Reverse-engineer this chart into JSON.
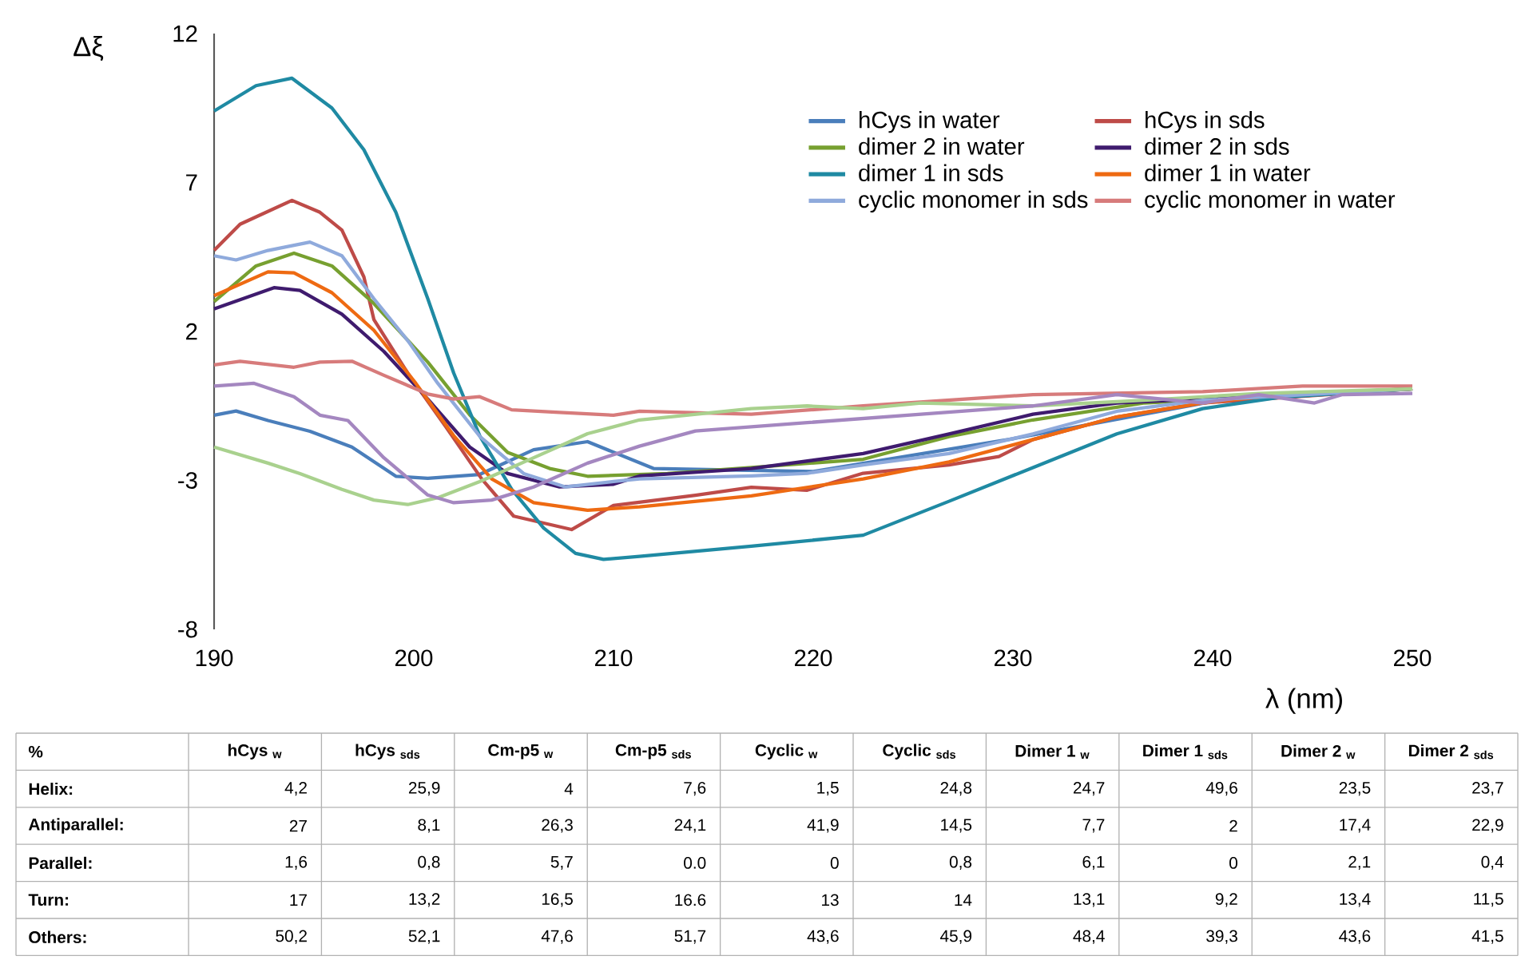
{
  "chart_data": [
    {
      "type": "line",
      "xlabel": "λ (nm)",
      "ylabel": "Δξ",
      "xlim": [
        190,
        250
      ],
      "ylim": [
        -8,
        12
      ],
      "xticks": [
        190,
        200,
        210,
        220,
        230,
        240,
        250
      ],
      "yticks": [
        -8,
        -3,
        2,
        7,
        12
      ],
      "legend": "top right",
      "line_style": "solid",
      "series": [
        {
          "name": "hCys in water",
          "color": "#4a7ebb",
          "x": [
            190,
            191.1,
            192.7,
            194.8,
            196.9,
            199.1,
            200.7,
            203.3,
            206,
            208.7,
            212,
            220,
            230,
            240,
            250
          ],
          "values": [
            -0.81,
            -0.67,
            -0.99,
            -1.35,
            -1.88,
            -2.86,
            -2.93,
            -2.8,
            -1.97,
            -1.7,
            -2.6,
            -2.7,
            -1.6,
            -0.35,
            0.07
          ]
        },
        {
          "name": "hCys in sds",
          "color": "#be4b48",
          "x": [
            190,
            191.3,
            193.9,
            195.3,
            196.4,
            197.5,
            198,
            199.7,
            201.6,
            203.4,
            205,
            207.9,
            210,
            214.1,
            216.9,
            219.7,
            222.5,
            226.8,
            229.3,
            231,
            235.2,
            239.5,
            250
          ],
          "values": [
            4.72,
            5.6,
            6.4,
            6.0,
            5.4,
            3.83,
            2.4,
            0.6,
            -1.2,
            -2.95,
            -4.2,
            -4.65,
            -3.84,
            -3.5,
            -3.23,
            -3.33,
            -2.76,
            -2.48,
            -2.2,
            -1.63,
            -0.87,
            -0.4,
            0.07
          ]
        },
        {
          "name": "dimer 2 in water",
          "color": "#77a030",
          "x": [
            190,
            192.1,
            194,
            195.9,
            198,
            200.7,
            202.8,
            204.7,
            206.8,
            208.7,
            212.7,
            216.9,
            222.5,
            226.8,
            231,
            236.6,
            250
          ],
          "values": [
            3.0,
            4.2,
            4.63,
            4.2,
            2.94,
            0.97,
            -0.8,
            -2.06,
            -2.6,
            -2.86,
            -2.77,
            -2.57,
            -2.29,
            -1.53,
            -0.97,
            -0.4,
            0.07
          ]
        },
        {
          "name": "dimer 2 in sds",
          "color": "#3f1b6e",
          "x": [
            190,
            193,
            194.3,
            196.4,
            198.5,
            200.7,
            202.8,
            204.7,
            207.3,
            210,
            211.3,
            216.9,
            222.5,
            226.8,
            231,
            235.2,
            238,
            250
          ],
          "values": [
            2.76,
            3.47,
            3.38,
            2.58,
            1.33,
            -0.27,
            -1.88,
            -2.77,
            -3.22,
            -3.13,
            -2.85,
            -2.6,
            -2.1,
            -1.44,
            -0.78,
            -0.4,
            -0.31,
            0.07
          ]
        },
        {
          "name": "dimer 1 in sds",
          "color": "#1f8aa3",
          "x": [
            190,
            192.1,
            193.9,
            195.9,
            197.5,
            199.1,
            200.7,
            202,
            203.3,
            204.9,
            206.5,
            208.1,
            209.5,
            211.3,
            216.9,
            222.5,
            226.8,
            231,
            235.2,
            239.5,
            243.4,
            250
          ],
          "values": [
            9.4,
            10.25,
            10.5,
            9.5,
            8.1,
            6.0,
            3.1,
            0.6,
            -1.5,
            -3.3,
            -4.6,
            -5.45,
            -5.65,
            -5.55,
            -5.21,
            -4.84,
            -3.7,
            -2.57,
            -1.44,
            -0.59,
            -0.21,
            0.07
          ]
        },
        {
          "name": "dimer 1 in water",
          "color": "#ee6a12",
          "x": [
            190,
            192.7,
            194,
            195.9,
            198,
            200.1,
            202,
            203.9,
            206,
            208.7,
            211.3,
            216.9,
            222.5,
            226.8,
            231,
            235.2,
            239.5,
            243.4,
            250
          ],
          "values": [
            3.2,
            4.0,
            3.97,
            3.3,
            2.04,
            0.26,
            -1.5,
            -2.95,
            -3.75,
            -4.0,
            -3.89,
            -3.52,
            -2.95,
            -2.38,
            -1.63,
            -0.87,
            -0.4,
            -0.12,
            0.07
          ]
        },
        {
          "name": "cyclic monomer in sds",
          "color": "#8faadc",
          "x": [
            190,
            191.1,
            192.7,
            194.8,
            196.4,
            198,
            199.7,
            201.2,
            203.3,
            205.5,
            207.6,
            210,
            211.3,
            216.9,
            219.7,
            222.5,
            226.8,
            231,
            235.2,
            239.5,
            250
          ],
          "values": [
            4.54,
            4.4,
            4.72,
            5.0,
            4.54,
            3.1,
            1.69,
            0.26,
            -1.52,
            -2.77,
            -3.22,
            -3.04,
            -2.95,
            -2.85,
            -2.76,
            -2.48,
            -2.1,
            -1.44,
            -0.68,
            -0.31,
            0.07
          ]
        },
        {
          "name": "cyclic monomer in water",
          "color": "#d77b7b",
          "x": [
            190,
            191.3,
            194,
            195.3,
            196.9,
            198.5,
            200.7,
            202,
            203.3,
            204.9,
            207.3,
            210,
            211.3,
            216.9,
            222.5,
            231,
            239.5,
            244.5,
            250
          ],
          "values": [
            0.88,
            1.0,
            0.8,
            0.97,
            1.0,
            0.53,
            -0.1,
            -0.27,
            -0.19,
            -0.63,
            -0.72,
            -0.81,
            -0.68,
            -0.78,
            -0.5,
            -0.12,
            -0.02,
            0.17,
            0.17
          ]
        },
        {
          "color": "#a9d18e",
          "x": [
            190,
            192.7,
            194.3,
            196.4,
            198,
            199.7,
            201.2,
            203.3,
            206,
            208.7,
            211.3,
            216.9,
            219.7,
            222.5,
            225.4,
            231,
            236.6,
            242.3,
            250
          ],
          "values": [
            -1.88,
            -2.42,
            -2.77,
            -3.3,
            -3.66,
            -3.81,
            -3.58,
            -3.04,
            -2.24,
            -1.43,
            -0.97,
            -0.59,
            -0.5,
            -0.59,
            -0.4,
            -0.5,
            -0.31,
            -0.08,
            0.07
          ]
        },
        {
          "color": "#a487c0",
          "x": [
            190,
            192,
            194,
            195.3,
            196.7,
            198.5,
            200.7,
            202,
            203.9,
            206,
            208.7,
            211.3,
            214.1,
            219.7,
            225.4,
            231,
            235.2,
            239.5,
            242.3,
            245.1,
            246.5,
            250
          ],
          "values": [
            0.17,
            0.26,
            -0.19,
            -0.81,
            -0.99,
            -2.24,
            -3.49,
            -3.75,
            -3.66,
            -3.22,
            -2.42,
            -1.85,
            -1.34,
            -1.06,
            -0.78,
            -0.5,
            -0.12,
            -0.4,
            -0.12,
            -0.4,
            -0.12,
            -0.08
          ]
        }
      ]
    },
    {
      "type": "other",
      "ylabel": "%",
      "categories": [
        "hCys $_{w}$",
        "hCys $_{sds}$",
        "Cm-p5 $_{w}$",
        "Cm-p5 $_{sds}$",
        "Cyclic $_{w}$",
        "Cyclic $_{sds}$",
        "Dimer 1 $_{w}$",
        "Dimer 1 $_{sds}$",
        "Dimer 2 $_{w}$",
        "Dimer 2 $_{sds}$"
      ],
      "y_categories": [
        "Helix:",
        "Antiparallel:",
        "Parallel:",
        "Turn:",
        "Others:"
      ],
      "cell_labels": [
        [
          "4,2",
          "25,9",
          "4",
          "7,6",
          "1,5",
          "24,8",
          "24,7",
          "49,6",
          "23,5",
          "23,7"
        ],
        [
          "27",
          "8,1",
          "26,3",
          "24,1",
          "41,9",
          "14,5",
          "7,7",
          "2",
          "17,4",
          "22,9"
        ],
        [
          "1,6",
          "0,8",
          "5,7",
          "0.0",
          "0",
          "0,8",
          "6,1",
          "0",
          "2,1",
          "0,4"
        ],
        [
          "17",
          "13,2",
          "16,5",
          "16.6",
          "13",
          "14",
          "13,1",
          "9,2",
          "13,4",
          "11,5"
        ],
        [
          "50,2",
          "52,1",
          "47,6",
          "51,7",
          "43,6",
          "45,9",
          "48,4",
          "39,3",
          "43,6",
          "41,5"
        ]
      ]
    }
  ]
}
